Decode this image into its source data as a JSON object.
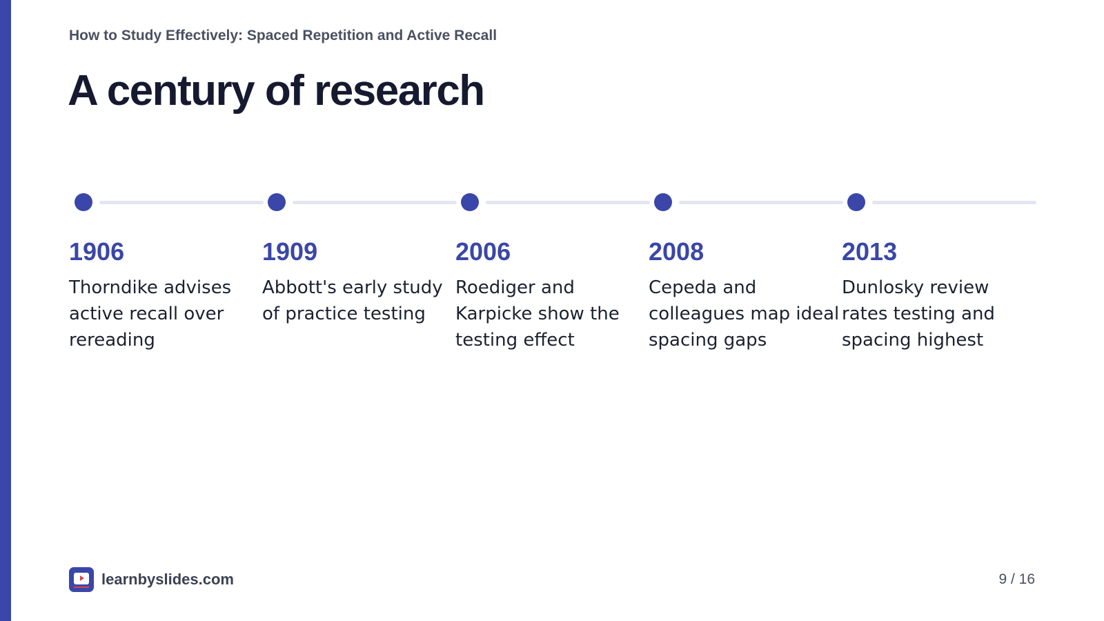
{
  "slide": {
    "deck_title": "How to Study Effectively: Spaced Repetition and Active Recall",
    "title": "A century of research"
  },
  "timeline": {
    "milestones": [
      {
        "year": "1906",
        "text": "Thorndike advises active recall over rereading"
      },
      {
        "year": "1909",
        "text": "Abbott's early study of practice testing"
      },
      {
        "year": "2006",
        "text": "Roediger and Karpicke show the testing effect"
      },
      {
        "year": "2008",
        "text": "Cepeda and colleagues map ideal spacing gaps"
      },
      {
        "year": "2013",
        "text": "Dunlosky review rates testing and spacing highest"
      }
    ]
  },
  "footer": {
    "brand": "learnbyslides.com",
    "logo_icon": "slides-play-icon",
    "page_number": "9 / 16"
  },
  "colors": {
    "accent": "#3a46a8",
    "title": "#161a30",
    "connector": "#e3e5f1",
    "logo_play": "#e0414e"
  }
}
